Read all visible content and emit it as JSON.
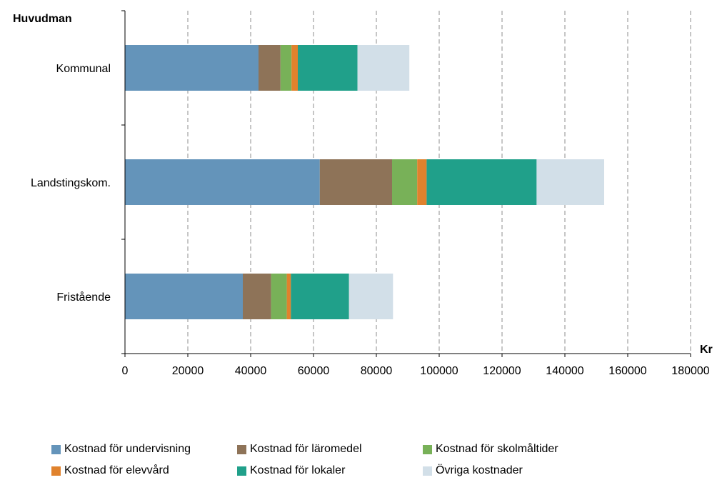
{
  "chart_data": {
    "type": "bar",
    "orientation": "horizontal",
    "stacked": true,
    "y_axis_title": "Huvudman",
    "x_axis_title": "Kr",
    "categories": [
      "Kommunal",
      "Landstingskom.",
      "Fristående"
    ],
    "xlim": [
      0,
      180000
    ],
    "x_ticks": [
      "0",
      "20000",
      "40000",
      "60000",
      "80000",
      "100000",
      "120000",
      "140000",
      "160000",
      "180000"
    ],
    "grid": "vertical dashed",
    "legend_position": "bottom",
    "series": [
      {
        "name": "Kostnad för undervisning",
        "color": "#6494BA",
        "values": [
          42500,
          62000,
          37500
        ]
      },
      {
        "name": "Kostnad för läromedel",
        "color": "#8E7358",
        "values": [
          7000,
          23000,
          9000
        ]
      },
      {
        "name": "Kostnad för skolmåltider",
        "color": "#78B158",
        "values": [
          3500,
          8000,
          5000
        ]
      },
      {
        "name": "Kostnad för elevvård",
        "color": "#E0822D",
        "values": [
          2000,
          3000,
          1300
        ]
      },
      {
        "name": "Kostnad för lokaler",
        "color": "#20A08A",
        "values": [
          19000,
          35000,
          18500
        ]
      },
      {
        "name": "Övriga kostnader",
        "color": "#D2DFE8",
        "values": [
          16500,
          21500,
          14000
        ]
      }
    ]
  }
}
